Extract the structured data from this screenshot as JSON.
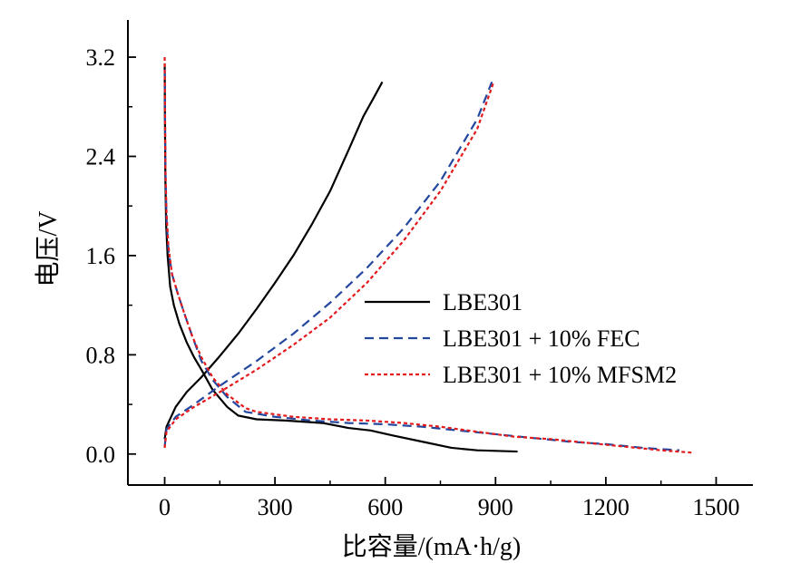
{
  "chart_data": {
    "type": "line",
    "xlabel": "比容量/(mA·h/g)",
    "ylabel": "电压/V",
    "xlim": [
      -100,
      1600
    ],
    "ylim": [
      -0.25,
      3.5
    ],
    "xticks": [
      0,
      300,
      600,
      900,
      1200,
      1500
    ],
    "yticks": [
      0.0,
      0.8,
      1.6,
      2.4,
      3.2
    ],
    "xtick_labels": [
      "0",
      "300",
      "600",
      "900",
      "1200",
      "1500"
    ],
    "ytick_labels": [
      "0.0",
      "0.8",
      "1.6",
      "2.4",
      "3.2"
    ],
    "grid": false,
    "legend_position": "center-right",
    "series": [
      {
        "name": "LBE301",
        "color": "#000000",
        "dash": "solid",
        "discharge": [
          [
            0,
            3.15
          ],
          [
            1,
            2.6
          ],
          [
            2,
            2.2
          ],
          [
            4,
            1.85
          ],
          [
            8,
            1.6
          ],
          [
            15,
            1.35
          ],
          [
            25,
            1.2
          ],
          [
            40,
            1.05
          ],
          [
            60,
            0.9
          ],
          [
            80,
            0.78
          ],
          [
            100,
            0.68
          ],
          [
            130,
            0.52
          ],
          [
            170,
            0.38
          ],
          [
            200,
            0.31
          ],
          [
            250,
            0.28
          ],
          [
            330,
            0.27
          ],
          [
            430,
            0.25
          ],
          [
            500,
            0.21
          ],
          [
            560,
            0.19
          ],
          [
            620,
            0.15
          ],
          [
            700,
            0.1
          ],
          [
            780,
            0.05
          ],
          [
            850,
            0.03
          ],
          [
            960,
            0.02
          ]
        ],
        "charge": [
          [
            0,
            0.12
          ],
          [
            5,
            0.22
          ],
          [
            30,
            0.38
          ],
          [
            60,
            0.5
          ],
          [
            100,
            0.62
          ],
          [
            150,
            0.79
          ],
          [
            200,
            0.97
          ],
          [
            250,
            1.17
          ],
          [
            300,
            1.38
          ],
          [
            350,
            1.6
          ],
          [
            400,
            1.85
          ],
          [
            450,
            2.12
          ],
          [
            500,
            2.45
          ],
          [
            540,
            2.72
          ],
          [
            570,
            2.88
          ],
          [
            592,
            3.0
          ]
        ]
      },
      {
        "name": "LBE301 + 10% FEC",
        "color": "#24479e",
        "dash": "dashed",
        "discharge": [
          [
            0,
            3.1
          ],
          [
            2,
            2.3
          ],
          [
            5,
            1.9
          ],
          [
            10,
            1.65
          ],
          [
            20,
            1.45
          ],
          [
            35,
            1.3
          ],
          [
            55,
            1.12
          ],
          [
            75,
            0.95
          ],
          [
            100,
            0.75
          ],
          [
            130,
            0.6
          ],
          [
            170,
            0.46
          ],
          [
            220,
            0.34
          ],
          [
            300,
            0.3
          ],
          [
            400,
            0.27
          ],
          [
            500,
            0.25
          ],
          [
            600,
            0.24
          ],
          [
            700,
            0.22
          ],
          [
            800,
            0.19
          ],
          [
            900,
            0.16
          ],
          [
            1000,
            0.13
          ],
          [
            1100,
            0.1
          ],
          [
            1200,
            0.08
          ],
          [
            1300,
            0.05
          ],
          [
            1400,
            0.03
          ]
        ],
        "charge": [
          [
            0,
            0.06
          ],
          [
            5,
            0.2
          ],
          [
            30,
            0.3
          ],
          [
            80,
            0.4
          ],
          [
            150,
            0.55
          ],
          [
            250,
            0.75
          ],
          [
            350,
            0.97
          ],
          [
            450,
            1.22
          ],
          [
            550,
            1.5
          ],
          [
            650,
            1.82
          ],
          [
            750,
            2.2
          ],
          [
            850,
            2.7
          ],
          [
            890,
            3.0
          ]
        ]
      },
      {
        "name": "LBE301 + 10% MFSM2",
        "color": "#e31a1c",
        "dash": "dotted",
        "discharge": [
          [
            0,
            3.2
          ],
          [
            2,
            2.3
          ],
          [
            5,
            1.95
          ],
          [
            10,
            1.68
          ],
          [
            20,
            1.45
          ],
          [
            35,
            1.3
          ],
          [
            55,
            1.12
          ],
          [
            75,
            0.95
          ],
          [
            100,
            0.78
          ],
          [
            130,
            0.62
          ],
          [
            170,
            0.48
          ],
          [
            220,
            0.37
          ],
          [
            250,
            0.34
          ],
          [
            350,
            0.3
          ],
          [
            450,
            0.28
          ],
          [
            550,
            0.27
          ],
          [
            650,
            0.25
          ],
          [
            750,
            0.22
          ],
          [
            850,
            0.18
          ],
          [
            950,
            0.14
          ],
          [
            1050,
            0.12
          ],
          [
            1150,
            0.09
          ],
          [
            1250,
            0.06
          ],
          [
            1350,
            0.03
          ],
          [
            1440,
            0.01
          ]
        ],
        "charge": [
          [
            0,
            0.05
          ],
          [
            5,
            0.18
          ],
          [
            30,
            0.28
          ],
          [
            80,
            0.38
          ],
          [
            150,
            0.5
          ],
          [
            250,
            0.68
          ],
          [
            350,
            0.88
          ],
          [
            450,
            1.1
          ],
          [
            550,
            1.38
          ],
          [
            650,
            1.72
          ],
          [
            750,
            2.12
          ],
          [
            850,
            2.62
          ],
          [
            895,
            3.0
          ]
        ]
      }
    ]
  }
}
